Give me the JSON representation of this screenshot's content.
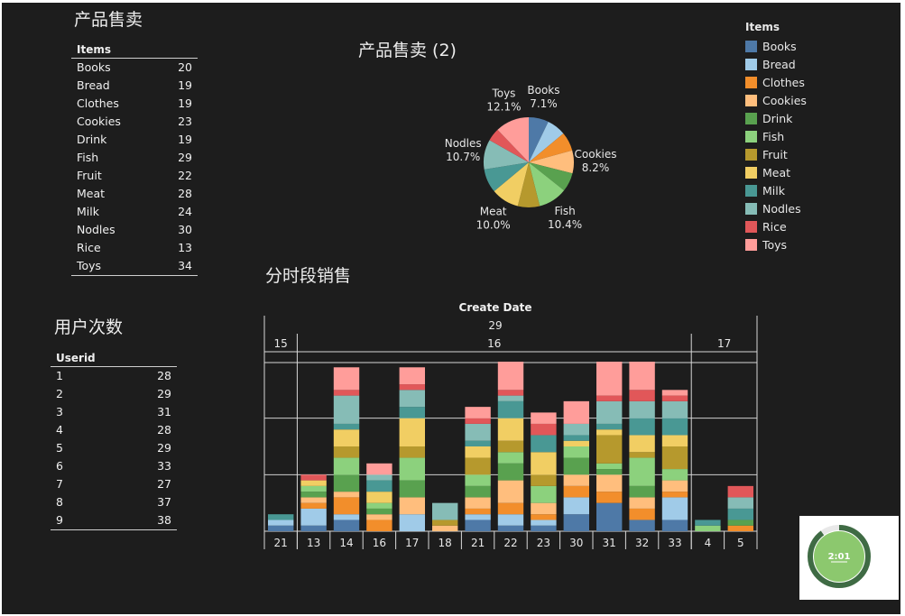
{
  "titles": {
    "items_table": "产品售卖",
    "pie": "产品售卖 (2)",
    "stacked": "分时段销售",
    "users_table": "用户次数"
  },
  "items_table": {
    "header": "Items",
    "rows": [
      {
        "label": "Books",
        "value": "20"
      },
      {
        "label": "Bread",
        "value": "19"
      },
      {
        "label": "Clothes",
        "value": "19"
      },
      {
        "label": "Cookies",
        "value": "23"
      },
      {
        "label": "Drink",
        "value": "19"
      },
      {
        "label": "Fish",
        "value": "29"
      },
      {
        "label": "Fruit",
        "value": "22"
      },
      {
        "label": "Meat",
        "value": "28"
      },
      {
        "label": "Milk",
        "value": "24"
      },
      {
        "label": "Nodles",
        "value": "30"
      },
      {
        "label": "Rice",
        "value": "13"
      },
      {
        "label": "Toys",
        "value": "34"
      }
    ]
  },
  "users_table": {
    "header": "Userid",
    "rows": [
      {
        "label": "1",
        "value": "28"
      },
      {
        "label": "2",
        "value": "29"
      },
      {
        "label": "3",
        "value": "31"
      },
      {
        "label": "4",
        "value": "28"
      },
      {
        "label": "5",
        "value": "29"
      },
      {
        "label": "6",
        "value": "33"
      },
      {
        "label": "7",
        "value": "27"
      },
      {
        "label": "8",
        "value": "37"
      },
      {
        "label": "9",
        "value": "38"
      }
    ]
  },
  "legend": {
    "title": "Items",
    "items": [
      {
        "label": "Books",
        "color": "#4e79a7"
      },
      {
        "label": "Bread",
        "color": "#a0cbe8"
      },
      {
        "label": "Clothes",
        "color": "#f28e2b"
      },
      {
        "label": "Cookies",
        "color": "#ffbe7d"
      },
      {
        "label": "Drink",
        "color": "#59a14f"
      },
      {
        "label": "Fish",
        "color": "#8cd17d"
      },
      {
        "label": "Fruit",
        "color": "#b6992d"
      },
      {
        "label": "Meat",
        "color": "#f1ce63"
      },
      {
        "label": "Milk",
        "color": "#499894"
      },
      {
        "label": "Nodles",
        "color": "#86bcb6"
      },
      {
        "label": "Rice",
        "color": "#e15759"
      },
      {
        "label": "Toys",
        "color": "#ff9d9a"
      }
    ]
  },
  "chart_data": [
    {
      "type": "pie",
      "title": "产品售卖 (2)",
      "categories": [
        "Books",
        "Bread",
        "Clothes",
        "Cookies",
        "Drink",
        "Fish",
        "Fruit",
        "Meat",
        "Milk",
        "Nodles",
        "Rice",
        "Toys"
      ],
      "values": [
        20,
        19,
        19,
        23,
        19,
        29,
        22,
        28,
        24,
        30,
        13,
        34
      ],
      "labels": [
        {
          "name": "Books",
          "pct": "7.1%"
        },
        {
          "name": "Cookies",
          "pct": "8.2%"
        },
        {
          "name": "Fish",
          "pct": "10.4%"
        },
        {
          "name": "Meat",
          "pct": "10.0%"
        },
        {
          "name": "Nodles",
          "pct": "10.7%"
        },
        {
          "name": "Toys",
          "pct": "12.1%"
        }
      ]
    },
    {
      "type": "bar",
      "stacked": true,
      "title": "分时段销售",
      "header": "Create Date",
      "month": "29",
      "day_groups": [
        {
          "label": "15",
          "count": 1
        },
        {
          "label": "16",
          "count": 12
        },
        {
          "label": "17",
          "count": 2
        }
      ],
      "categories": [
        "21",
        "13",
        "14",
        "16",
        "17",
        "18",
        "21",
        "22",
        "23",
        "30",
        "31",
        "32",
        "33",
        "4",
        "5"
      ],
      "ylim": [
        0,
        30
      ],
      "stacks": [
        {
          "Books": 1,
          "Bread": 1,
          "Milk": 1
        },
        {
          "Books": 1,
          "Bread": 3,
          "Clothes": 1,
          "Cookies": 1,
          "Drink": 1,
          "Fish": 1,
          "Meat": 1,
          "Rice": 1
        },
        {
          "Books": 2,
          "Bread": 1,
          "Clothes": 3,
          "Cookies": 1,
          "Drink": 3,
          "Fish": 3,
          "Fruit": 2,
          "Meat": 3,
          "Milk": 1,
          "Nodles": 5,
          "Rice": 1,
          "Toys": 4
        },
        {
          "Clothes": 2,
          "Cookies": 1,
          "Drink": 1,
          "Fish": 1,
          "Meat": 2,
          "Milk": 2,
          "Nodles": 1,
          "Toys": 2
        },
        {
          "Bread": 3,
          "Cookies": 3,
          "Drink": 3,
          "Fish": 4,
          "Fruit": 2,
          "Meat": 5,
          "Milk": 2,
          "Nodles": 3,
          "Rice": 1,
          "Toys": 3
        },
        {
          "Cookies": 1,
          "Fruit": 1,
          "Nodles": 3
        },
        {
          "Books": 2,
          "Bread": 1,
          "Clothes": 1,
          "Cookies": 2,
          "Drink": 2,
          "Fish": 2,
          "Fruit": 3,
          "Meat": 2,
          "Milk": 1,
          "Nodles": 3,
          "Rice": 1,
          "Toys": 2
        },
        {
          "Books": 1,
          "Bread": 2,
          "Clothes": 2,
          "Cookies": 4,
          "Drink": 3,
          "Fish": 2,
          "Fruit": 2,
          "Meat": 4,
          "Milk": 3,
          "Nodles": 1,
          "Rice": 1,
          "Toys": 5
        },
        {
          "Books": 1,
          "Bread": 1,
          "Clothes": 1,
          "Cookies": 2,
          "Fish": 3,
          "Fruit": 2,
          "Meat": 4,
          "Milk": 3,
          "Rice": 2,
          "Toys": 2
        },
        {
          "Books": 3,
          "Bread": 3,
          "Clothes": 2,
          "Cookies": 2,
          "Drink": 3,
          "Fish": 2,
          "Meat": 1,
          "Milk": 1,
          "Nodles": 2,
          "Toys": 4
        },
        {
          "Books": 5,
          "Clothes": 2,
          "Cookies": 3,
          "Drink": 1,
          "Fish": 1,
          "Fruit": 5,
          "Meat": 1,
          "Milk": 1,
          "Nodles": 4,
          "Rice": 1,
          "Toys": 6
        },
        {
          "Books": 2,
          "Clothes": 2,
          "Cookies": 2,
          "Drink": 2,
          "Fish": 5,
          "Fruit": 1,
          "Meat": 3,
          "Milk": 3,
          "Nodles": 3,
          "Rice": 2,
          "Toys": 5
        },
        {
          "Books": 2,
          "Bread": 4,
          "Clothes": 1,
          "Cookies": 2,
          "Fish": 2,
          "Fruit": 4,
          "Meat": 2,
          "Milk": 3,
          "Nodles": 3,
          "Rice": 1,
          "Toys": 1
        },
        {
          "Fish": 1,
          "Milk": 1
        },
        {
          "Clothes": 1,
          "Drink": 1,
          "Milk": 2,
          "Nodles": 2,
          "Rice": 2
        }
      ]
    }
  ],
  "timer": {
    "label": "2:01",
    "progress": 0.9
  }
}
